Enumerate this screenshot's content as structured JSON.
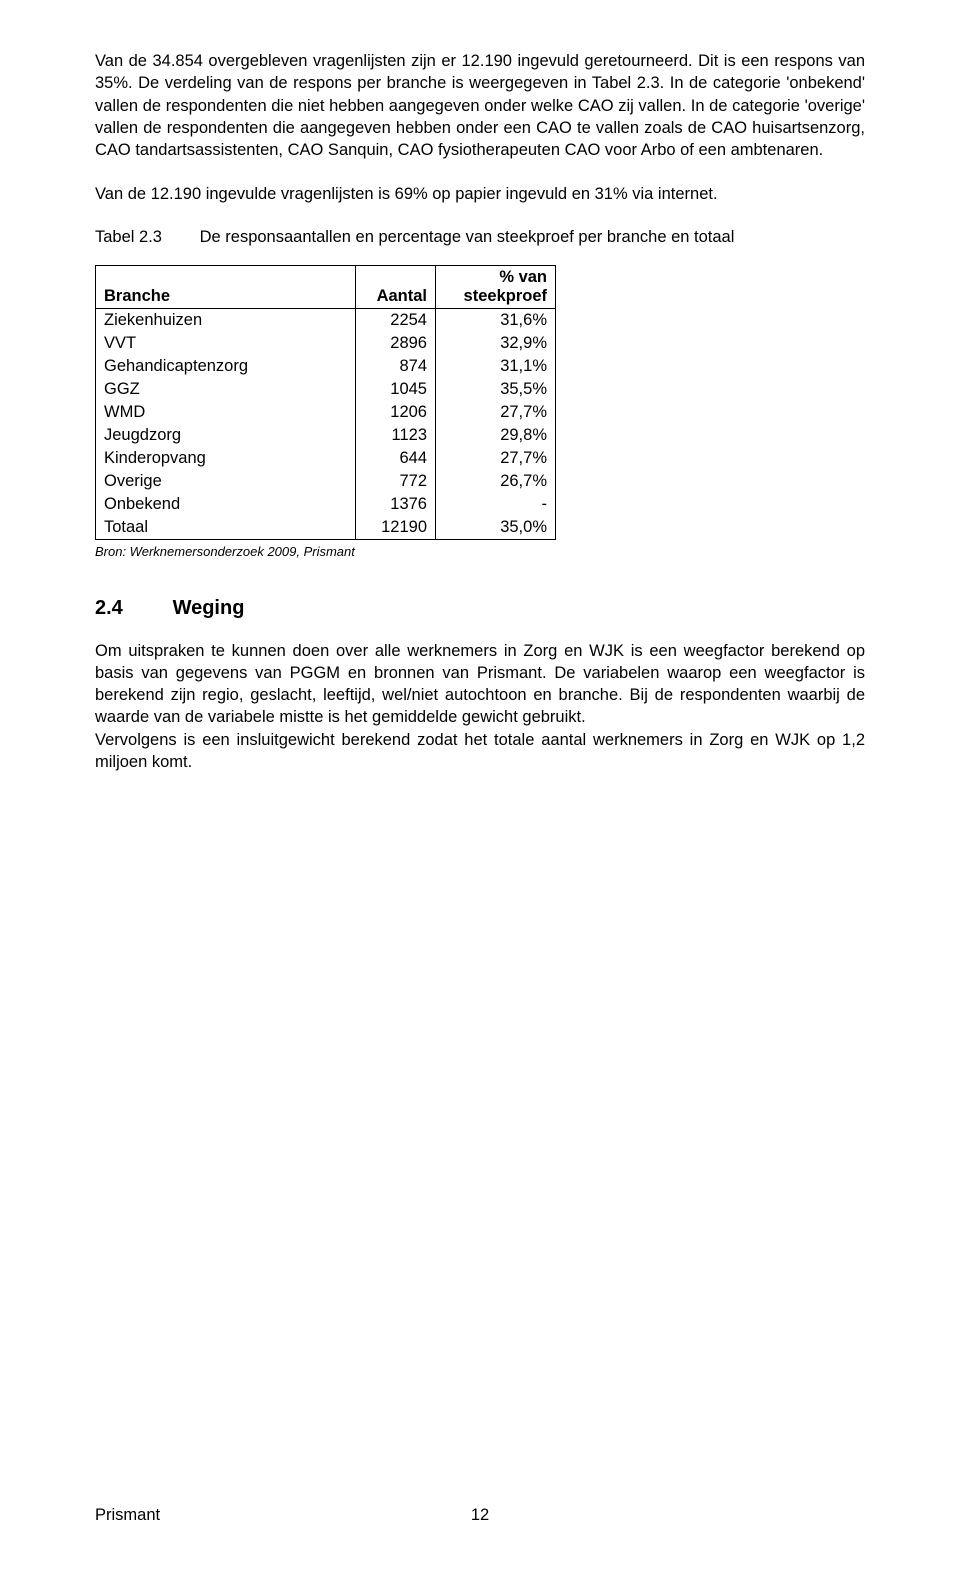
{
  "para1": "Van de 34.854 overgebleven vragenlijsten zijn er 12.190 ingevuld geretourneerd. Dit is een respons van 35%. De verdeling van de respons per branche is weergegeven in Tabel 2.3. In de categorie 'onbekend' vallen de respondenten die niet hebben aangegeven onder welke CAO zij vallen. In de categorie 'overige' vallen de respondenten die aangegeven hebben onder een CAO te vallen zoals de CAO huisartsenzorg, CAO tandartsassistenten, CAO Sanquin, CAO fysiotherapeuten CAO voor Arbo of een ambtenaren.",
  "para2": "Van de 12.190 ingevulde vragenlijsten is 69% op papier ingevuld en 31% via internet.",
  "table": {
    "label": "Tabel 2.3",
    "caption": "De responsaantallen en percentage van steekproef per branche en totaal",
    "columns": {
      "c1": "Branche",
      "c2": "Aantal",
      "c3_line1": "% van",
      "c3_line2": "steekproef"
    },
    "rows": [
      {
        "branche": "Ziekenhuizen",
        "aantal": "2254",
        "pct": "31,6%"
      },
      {
        "branche": "VVT",
        "aantal": "2896",
        "pct": "32,9%"
      },
      {
        "branche": "Gehandicaptenzorg",
        "aantal": "874",
        "pct": "31,1%"
      },
      {
        "branche": "GGZ",
        "aantal": "1045",
        "pct": "35,5%"
      },
      {
        "branche": "WMD",
        "aantal": "1206",
        "pct": "27,7%"
      },
      {
        "branche": "Jeugdzorg",
        "aantal": "1123",
        "pct": "29,8%"
      },
      {
        "branche": "Kinderopvang",
        "aantal": "644",
        "pct": "27,7%"
      },
      {
        "branche": "Overige",
        "aantal": "772",
        "pct": "26,7%"
      },
      {
        "branche": "Onbekend",
        "aantal": "1376",
        "pct": "-"
      },
      {
        "branche": "Totaal",
        "aantal": "12190",
        "pct": "35,0%"
      }
    ],
    "source": "Bron: Werknemersonderzoek 2009, Prismant"
  },
  "section": {
    "num": "2.4",
    "title": "Weging"
  },
  "para3": "Om uitspraken te kunnen doen over alle werknemers in Zorg en WJK is een weegfactor berekend op basis van gegevens van PGGM en bronnen van Prismant. De variabelen waarop een weegfactor is berekend zijn regio, geslacht, leeftijd, wel/niet autochtoon en branche. Bij de respondenten waarbij de waarde van de variabele mistte is het gemiddelde gewicht gebruikt.",
  "para4": "Vervolgens is een insluitgewicht berekend zodat het totale aantal werknemers in Zorg en WJK op 1,2 miljoen komt.",
  "footer": {
    "left": "Prismant",
    "page": "12"
  },
  "style": {
    "background": "#ffffff",
    "text_color": "#000000",
    "body_fontsize": 16.5,
    "source_fontsize": 13,
    "heading_fontsize": 20,
    "border_color": "#000000"
  }
}
